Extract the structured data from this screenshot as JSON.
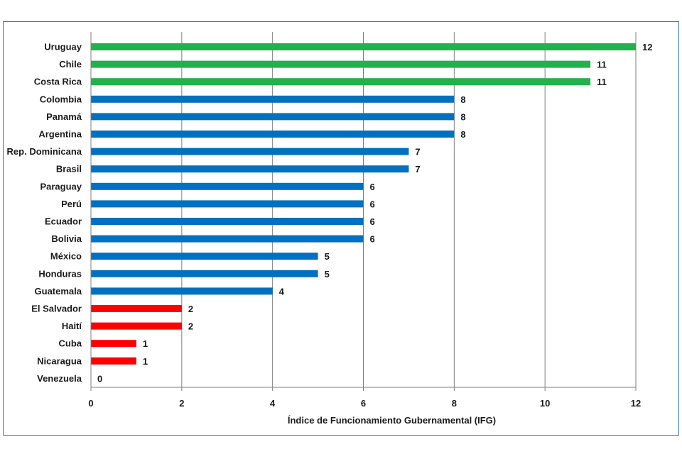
{
  "chart_data": {
    "type": "bar",
    "orientation": "horizontal",
    "categories": [
      "Uruguay",
      "Chile",
      "Costa Rica",
      "Colombia",
      "Panamá",
      "Argentina",
      "Rep. Dominicana",
      "Brasil",
      "Paraguay",
      "Perú",
      "Ecuador",
      "Bolivia",
      "México",
      "Honduras",
      "Guatemala",
      "El Salvador",
      "Haití",
      "Cuba",
      "Nicaragua",
      "Venezuela"
    ],
    "values": [
      12,
      11,
      11,
      8,
      8,
      8,
      7,
      7,
      6,
      6,
      6,
      6,
      5,
      5,
      4,
      2,
      2,
      1,
      1,
      0
    ],
    "bar_colors": [
      "#22b14c",
      "#22b14c",
      "#22b14c",
      "#0070c0",
      "#0070c0",
      "#0070c0",
      "#0070c0",
      "#0070c0",
      "#0070c0",
      "#0070c0",
      "#0070c0",
      "#0070c0",
      "#0070c0",
      "#0070c0",
      "#0070c0",
      "#ff0000",
      "#ff0000",
      "#ff0000",
      "#ff0000",
      "#ff0000"
    ],
    "xlabel": "Índice de Funcionamiento Gubernamental (IFG)",
    "ylabel": "",
    "xlim": [
      0,
      12
    ],
    "xticks": [
      0,
      2,
      4,
      6,
      8,
      10,
      12
    ],
    "grid": "vertical",
    "legend": "none",
    "colors": {
      "green": "#22b14c",
      "blue": "#0070c0",
      "red": "#ff0000",
      "frame": "#2e74b5",
      "grid": "#7f7f7f"
    }
  }
}
